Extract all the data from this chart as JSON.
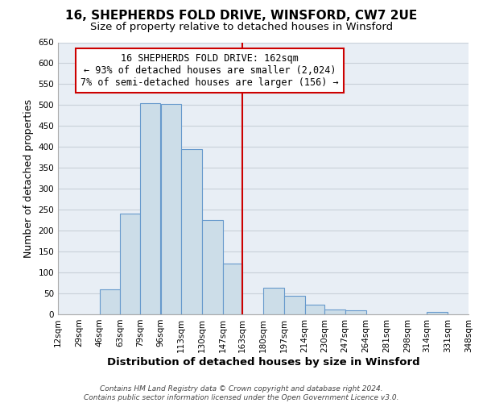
{
  "title": "16, SHEPHERDS FOLD DRIVE, WINSFORD, CW7 2UE",
  "subtitle": "Size of property relative to detached houses in Winsford",
  "xlabel": "Distribution of detached houses by size in Winsford",
  "ylabel": "Number of detached properties",
  "footer_lines": [
    "Contains HM Land Registry data © Crown copyright and database right 2024.",
    "Contains public sector information licensed under the Open Government Licence v3.0."
  ],
  "bin_edges": [
    12,
    29,
    46,
    63,
    79,
    96,
    113,
    130,
    147,
    163,
    180,
    197,
    214,
    230,
    247,
    264,
    281,
    298,
    314,
    331,
    348
  ],
  "bin_labels": [
    "12sqm",
    "29sqm",
    "46sqm",
    "63sqm",
    "79sqm",
    "96sqm",
    "113sqm",
    "130sqm",
    "147sqm",
    "163sqm",
    "180sqm",
    "197sqm",
    "214sqm",
    "230sqm",
    "247sqm",
    "264sqm",
    "281sqm",
    "298sqm",
    "314sqm",
    "331sqm",
    "348sqm"
  ],
  "counts": [
    0,
    0,
    60,
    240,
    505,
    502,
    395,
    225,
    122,
    0,
    63,
    45,
    23,
    12,
    10,
    0,
    0,
    0,
    5,
    0,
    3
  ],
  "bar_color": "#ccdde8",
  "bar_edge_color": "#6699cc",
  "reference_line_x": 163,
  "reference_line_color": "#cc0000",
  "annotation_text": "16 SHEPHERDS FOLD DRIVE: 162sqm\n← 93% of detached houses are smaller (2,024)\n7% of semi-detached houses are larger (156) →",
  "annotation_box_color": "#ffffff",
  "annotation_box_edge_color": "#cc0000",
  "ylim": [
    0,
    650
  ],
  "yticks": [
    0,
    50,
    100,
    150,
    200,
    250,
    300,
    350,
    400,
    450,
    500,
    550,
    600,
    650
  ],
  "plot_bg_color": "#e8eef5",
  "background_color": "#ffffff",
  "grid_color": "#c8d0d8",
  "title_fontsize": 11,
  "subtitle_fontsize": 9.5,
  "xlabel_fontsize": 9.5,
  "ylabel_fontsize": 9,
  "tick_fontsize": 7.5,
  "annotation_fontsize": 8.5
}
